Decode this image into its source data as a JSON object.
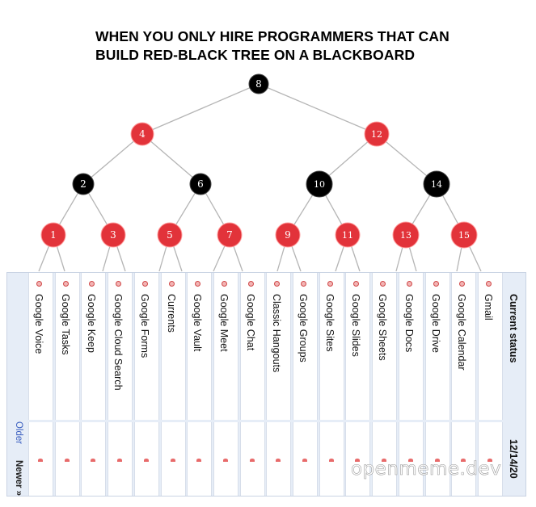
{
  "caption": {
    "line1": "WHEN YOU ONLY HIRE PROGRAMMERS THAT CAN",
    "line2": "BUILD RED-BLACK TREE ON A BLACKBOARD"
  },
  "tree": {
    "nodes": [
      {
        "label": "8",
        "color": "black"
      },
      {
        "label": "4",
        "color": "red"
      },
      {
        "label": "12",
        "color": "red"
      },
      {
        "label": "2",
        "color": "black"
      },
      {
        "label": "6",
        "color": "black"
      },
      {
        "label": "10",
        "color": "black"
      },
      {
        "label": "14",
        "color": "black"
      },
      {
        "label": "1",
        "color": "red"
      },
      {
        "label": "3",
        "color": "red"
      },
      {
        "label": "5",
        "color": "red"
      },
      {
        "label": "7",
        "color": "red"
      },
      {
        "label": "9",
        "color": "red"
      },
      {
        "label": "11",
        "color": "red"
      },
      {
        "label": "13",
        "color": "red"
      },
      {
        "label": "15",
        "color": "red"
      }
    ],
    "colors": {
      "red": "#e2333a",
      "black": "#000000",
      "edge": "#b5b5b5"
    }
  },
  "table": {
    "header": "Current status",
    "date": "12/14/20",
    "older": "Older",
    "newer": "Newer »",
    "services": [
      "Google Voice",
      "Google Tasks",
      "Google Keep",
      "Google Cloud Search",
      "Google Forms",
      "Currents",
      "Google Vault",
      "Google Meet",
      "Google Chat",
      "Classic Hangouts",
      "Google Groups",
      "Google Sites",
      "Google Slides",
      "Google Sheets",
      "Google Docs",
      "Google Drive",
      "Google Calendar",
      "Gmail"
    ],
    "link_color": "#3b5fc0"
  },
  "watermark": "openmeme.dev"
}
